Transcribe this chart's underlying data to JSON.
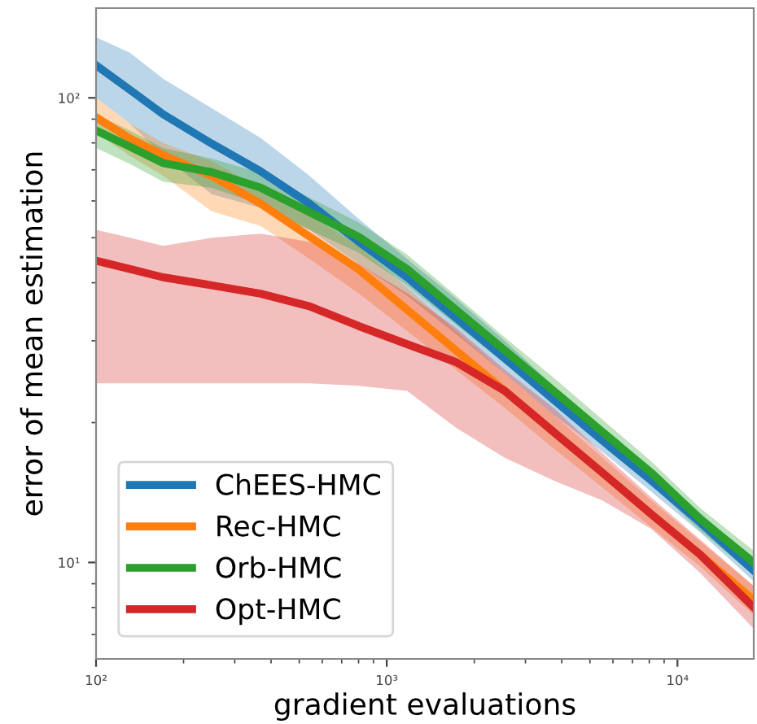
{
  "chart_data": {
    "type": "line",
    "xlabel": "gradient evaluations",
    "ylabel": "error of mean estimation",
    "log": "xy",
    "x": [
      100,
      131,
      170,
      250,
      368,
      542,
      798,
      1175,
      1730,
      2547,
      3750,
      5520,
      8130,
      11970,
      18300
    ],
    "xlim": [
      100,
      18300
    ],
    "ylim": [
      6.2,
      156
    ],
    "xticks": [
      {
        "value": 100,
        "label": "10²"
      },
      {
        "value": 1000,
        "label": "10³"
      },
      {
        "value": 10000,
        "label": "10⁴"
      }
    ],
    "yticks": [
      {
        "value": 10,
        "label": "10¹"
      },
      {
        "value": 100,
        "label": "10²"
      }
    ],
    "legend": "bottom left",
    "grid": false,
    "series": [
      {
        "name": "ChEES-HMC",
        "color": "#1f77b4",
        "values": [
          117.5,
          104,
          92.2,
          79.7,
          69.5,
          59.2,
          49.1,
          41.1,
          33.6,
          27.5,
          22.4,
          18.3,
          15.0,
          12.2,
          9.6
        ],
        "upper": [
          135,
          125,
          110,
          95,
          82,
          68,
          55,
          45,
          37,
          30,
          24,
          19.5,
          15.8,
          12.8,
          10.1
        ],
        "lower": [
          100,
          88,
          75,
          62,
          58,
          52,
          44,
          37.5,
          31,
          25.5,
          20.8,
          17.3,
          14.2,
          11.6,
          9.1
        ]
      },
      {
        "name": "Rec-HMC",
        "color": "#ff7f0e",
        "values": [
          90.8,
          81.7,
          75.4,
          67.9,
          59.2,
          50.3,
          42.8,
          35,
          28.6,
          23.4,
          19.1,
          15.6,
          12.7,
          10.4,
          8.3
        ],
        "upper": [
          100,
          88,
          80,
          73,
          64,
          56,
          48,
          39,
          31.5,
          25.5,
          20.8,
          16.8,
          13.6,
          11.1,
          8.9
        ],
        "lower": [
          84,
          75,
          68,
          57,
          53,
          45,
          38,
          31.5,
          26,
          21.5,
          17.6,
          14.5,
          11.9,
          9.8,
          7.7
        ]
      },
      {
        "name": "Orb-HMC",
        "color": "#2ca02c",
        "values": [
          85.1,
          78.5,
          72.4,
          69.2,
          64.1,
          56.8,
          50.3,
          42.8,
          35,
          28.6,
          23.4,
          19.1,
          15.6,
          12.4,
          10.0
        ],
        "upper": [
          92,
          85,
          78,
          74,
          69,
          61,
          54,
          46,
          37.5,
          30.5,
          25,
          20.3,
          16.5,
          13.1,
          10.6
        ],
        "lower": [
          78,
          72,
          66,
          64,
          59,
          52,
          46.5,
          39.5,
          32.5,
          26.8,
          22,
          18,
          14.7,
          11.7,
          9.4
        ]
      },
      {
        "name": "Opt-HMC",
        "color": "#d62728",
        "values": [
          44.6,
          42.8,
          41.1,
          39.5,
          37.9,
          35.6,
          32.3,
          29.5,
          27,
          23.4,
          19.1,
          15.6,
          12.7,
          10.4,
          8.0
        ],
        "upper": [
          52,
          50,
          48,
          50,
          51,
          49,
          44,
          38,
          32,
          26,
          21.5,
          17.2,
          13.8,
          11.2,
          8.9
        ],
        "lower": [
          24.3,
          24.3,
          24.3,
          24.3,
          24.3,
          24.3,
          24,
          23.4,
          19.5,
          16.8,
          15,
          13.6,
          11.8,
          9.5,
          7.2
        ]
      }
    ]
  }
}
